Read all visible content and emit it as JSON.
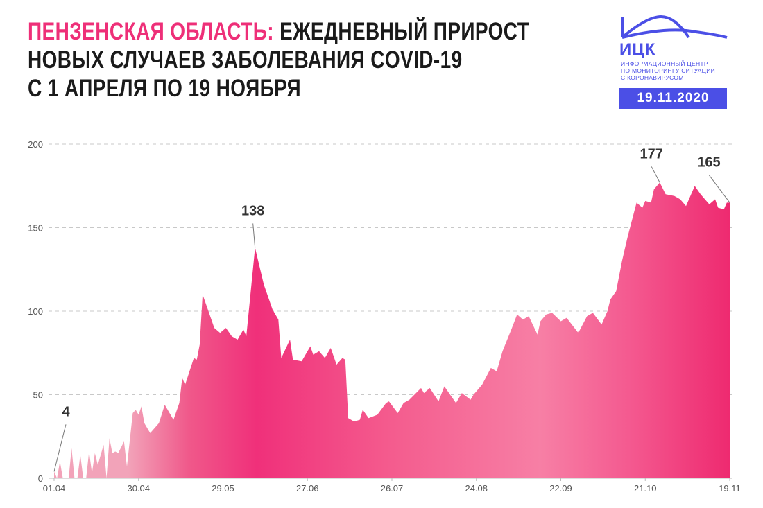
{
  "title": {
    "region": "ПЕНЗЕНСКАЯ ОБЛАСТЬ:",
    "line1_rest": " ЕЖЕДНЕВНЫЙ ПРИРОСТ",
    "line2": "НОВЫХ СЛУЧАЕВ ЗАБОЛЕВАНИЯ COVID-19",
    "line3": "С 1 АПРЕЛЯ ПО 19 НОЯБРЯ"
  },
  "logo": {
    "name": "ИЦК",
    "sub1": "ИНФОРМАЦИОННЫЙ ЦЕНТР",
    "sub2": "ПО МОНИТОРИНГУ СИТУАЦИИ",
    "sub3": "С КОРОНАВИРУСОМ",
    "date": "19.11.2020"
  },
  "colors": {
    "accent": "#ee2f78",
    "brand": "#4b4fe6",
    "fill_light": "#f2a3b9",
    "fill_deep": "#f0307a",
    "fill_mid": "#f77fa5"
  },
  "chart_data": {
    "type": "area",
    "title": "Ежедневный прирост новых случаев заболевания COVID-19",
    "xlabel": "",
    "ylabel": "",
    "x_unit": "days since 01.04",
    "xlim": [
      0,
      232
    ],
    "ylim": [
      0,
      200
    ],
    "yticks": [
      0,
      50,
      100,
      150,
      200
    ],
    "xticks": [
      {
        "day": 0,
        "label": "01.04"
      },
      {
        "day": 29,
        "label": "30.04"
      },
      {
        "day": 58,
        "label": "29.05"
      },
      {
        "day": 87,
        "label": "27.06"
      },
      {
        "day": 116,
        "label": "26.07"
      },
      {
        "day": 145,
        "label": "24.08"
      },
      {
        "day": 174,
        "label": "22.09"
      },
      {
        "day": 203,
        "label": "21.10"
      },
      {
        "day": 232,
        "label": "19.11"
      }
    ],
    "grid": true,
    "points": [
      [
        0,
        4
      ],
      [
        1,
        0
      ],
      [
        2,
        10
      ],
      [
        3,
        0
      ],
      [
        5,
        0
      ],
      [
        6,
        18
      ],
      [
        7,
        0
      ],
      [
        8,
        0
      ],
      [
        9,
        14
      ],
      [
        10,
        0
      ],
      [
        11,
        0
      ],
      [
        12,
        16
      ],
      [
        13,
        3
      ],
      [
        14,
        15
      ],
      [
        15,
        8
      ],
      [
        17,
        20
      ],
      [
        18,
        0
      ],
      [
        19,
        24
      ],
      [
        20,
        15
      ],
      [
        21,
        16
      ],
      [
        22,
        15
      ],
      [
        24,
        22
      ],
      [
        25,
        7
      ],
      [
        27,
        39
      ],
      [
        28,
        41
      ],
      [
        29,
        38
      ],
      [
        30,
        43
      ],
      [
        31,
        33
      ],
      [
        33,
        27
      ],
      [
        36,
        33
      ],
      [
        38,
        44
      ],
      [
        41,
        35
      ],
      [
        43,
        45
      ],
      [
        44,
        60
      ],
      [
        45,
        56
      ],
      [
        48,
        72
      ],
      [
        49,
        71
      ],
      [
        50,
        80
      ],
      [
        51,
        110
      ],
      [
        55,
        90
      ],
      [
        57,
        87
      ],
      [
        59,
        90
      ],
      [
        61,
        85
      ],
      [
        63,
        83
      ],
      [
        65,
        89
      ],
      [
        66,
        85
      ],
      [
        69,
        138
      ],
      [
        72,
        116
      ],
      [
        75,
        101
      ],
      [
        77,
        95
      ],
      [
        78,
        72
      ],
      [
        81,
        83
      ],
      [
        82,
        71
      ],
      [
        85,
        70
      ],
      [
        88,
        79
      ],
      [
        89,
        74
      ],
      [
        91,
        76
      ],
      [
        93,
        72
      ],
      [
        95,
        78
      ],
      [
        97,
        68
      ],
      [
        99,
        72
      ],
      [
        100,
        71
      ],
      [
        101,
        36
      ],
      [
        103,
        34
      ],
      [
        105,
        35
      ],
      [
        106,
        41
      ],
      [
        108,
        36
      ],
      [
        111,
        38
      ],
      [
        114,
        45
      ],
      [
        115,
        46
      ],
      [
        118,
        39
      ],
      [
        120,
        45
      ],
      [
        122,
        47
      ],
      [
        126,
        54
      ],
      [
        127,
        51
      ],
      [
        129,
        54
      ],
      [
        132,
        46
      ],
      [
        134,
        55
      ],
      [
        138,
        45
      ],
      [
        140,
        51
      ],
      [
        143,
        47
      ],
      [
        144,
        50
      ],
      [
        147,
        56
      ],
      [
        150,
        66
      ],
      [
        152,
        64
      ],
      [
        154,
        76
      ],
      [
        157,
        89
      ],
      [
        159,
        98
      ],
      [
        161,
        95
      ],
      [
        163,
        97
      ],
      [
        166,
        86
      ],
      [
        167,
        94
      ],
      [
        169,
        98
      ],
      [
        171,
        99
      ],
      [
        174,
        94
      ],
      [
        176,
        96
      ],
      [
        180,
        87
      ],
      [
        183,
        97
      ],
      [
        185,
        99
      ],
      [
        188,
        92
      ],
      [
        190,
        100
      ],
      [
        191,
        107
      ],
      [
        193,
        112
      ],
      [
        195,
        130
      ],
      [
        197,
        145
      ],
      [
        200,
        165
      ],
      [
        202,
        162
      ],
      [
        203,
        166
      ],
      [
        205,
        165
      ],
      [
        206,
        173
      ],
      [
        208,
        177
      ],
      [
        210,
        170
      ],
      [
        213,
        169
      ],
      [
        215,
        167
      ],
      [
        217,
        163
      ],
      [
        220,
        175
      ],
      [
        222,
        170
      ],
      [
        225,
        164
      ],
      [
        227,
        167
      ],
      [
        228,
        162
      ],
      [
        230,
        161
      ],
      [
        231,
        165
      ],
      [
        232,
        165
      ]
    ],
    "annotations": [
      {
        "day": 0,
        "value": 4,
        "label": "4"
      },
      {
        "day": 69,
        "value": 138,
        "label": "138"
      },
      {
        "day": 208,
        "value": 177,
        "label": "177"
      },
      {
        "day": 232,
        "value": 165,
        "label": "165"
      }
    ]
  }
}
